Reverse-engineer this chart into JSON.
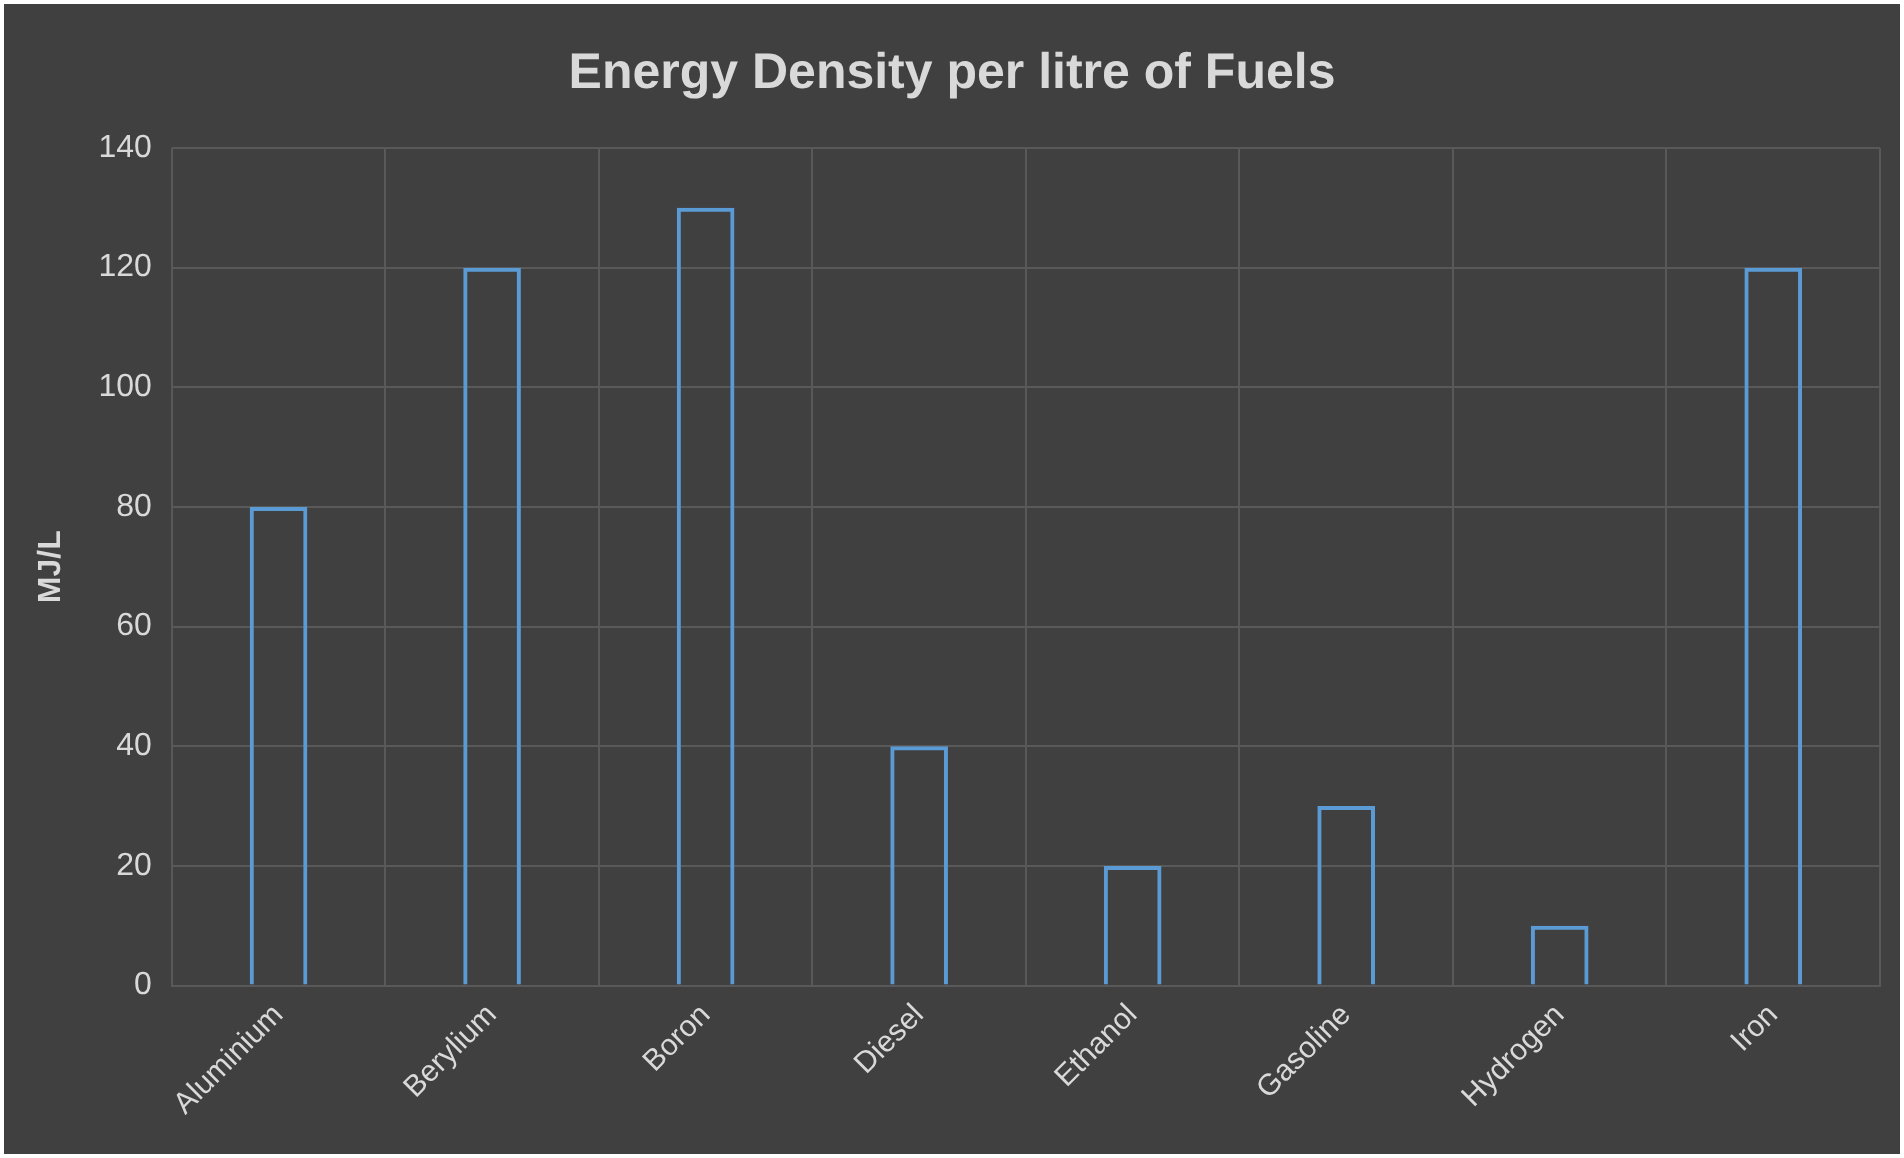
{
  "chart_data": {
    "type": "bar",
    "title": "Energy Density per litre of Fuels",
    "ylabel": "MJ/L",
    "categories": [
      "Aluminium",
      "Berylium",
      "Boron",
      "Diesel",
      "Ethanol",
      "Gasoline",
      "Hydrogen",
      "Iron"
    ],
    "values": [
      80,
      120,
      130,
      40,
      20,
      30,
      10,
      120
    ],
    "color": "#5b9bd5",
    "ylim": [
      0,
      140
    ],
    "yticks": [
      0,
      20,
      40,
      60,
      80,
      100,
      120,
      140
    ],
    "grid": true
  }
}
